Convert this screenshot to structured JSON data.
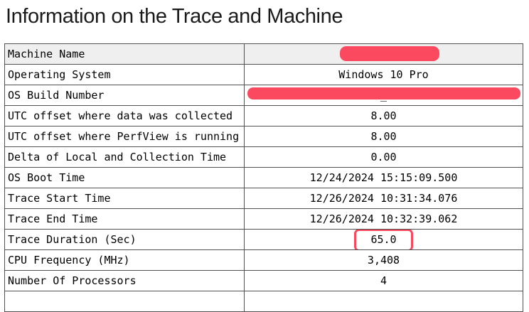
{
  "page": {
    "title": "Information on the Trace and Machine"
  },
  "table": {
    "rows": [
      {
        "label": "Machine Name",
        "value": "",
        "redaction": "pill",
        "highlight_row": true
      },
      {
        "label": "Operating System",
        "value": "Windows 10 Pro"
      },
      {
        "label": "OS Build Number",
        "value": "_",
        "redaction": "bar"
      },
      {
        "label": "UTC offset where data was collected",
        "value": "8.00"
      },
      {
        "label": "UTC offset where PerfView is running",
        "value": "8.00"
      },
      {
        "label": "Delta of Local and Collection Time",
        "value": "0.00"
      },
      {
        "label": "OS Boot Time",
        "value": "12/24/2024 15:15:09.500"
      },
      {
        "label": "Trace Start Time",
        "value": "12/26/2024 10:31:34.076"
      },
      {
        "label": "Trace End Time",
        "value": "12/26/2024 10:32:39.062"
      },
      {
        "label": "Trace Duration (Sec)",
        "value": "65.0",
        "boxed": true
      },
      {
        "label": "CPU Frequency (MHz)",
        "value": "3,408"
      },
      {
        "label": "Number Of Processors",
        "value": "4"
      },
      {
        "label": "",
        "value": ""
      }
    ]
  },
  "colors": {
    "redaction": "#fb4a5f",
    "highlight_border": "#f8485e",
    "row_hover_bg": "#efefef",
    "table_border": "#515151"
  }
}
